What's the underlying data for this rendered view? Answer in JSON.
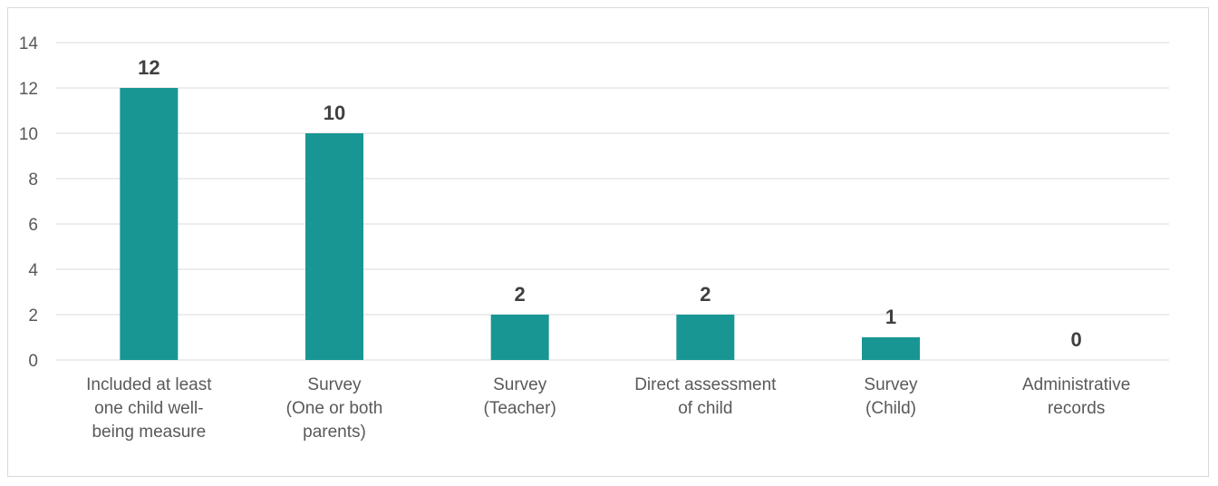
{
  "chart_data": {
    "type": "bar",
    "title": "",
    "xlabel": "",
    "ylabel": "",
    "categories": [
      [
        "Included at least",
        "one child well-",
        "being measure"
      ],
      [
        "Survey",
        "(One or both",
        "parents)"
      ],
      [
        "Survey",
        "(Teacher)"
      ],
      [
        "Direct assessment",
        "of child"
      ],
      [
        "Survey",
        "(Child)"
      ],
      [
        "Administrative",
        "records"
      ]
    ],
    "values": [
      12,
      10,
      2,
      2,
      1,
      0
    ],
    "ylim": [
      0,
      14
    ],
    "yticks": [
      0,
      2,
      4,
      6,
      8,
      10,
      12,
      14
    ],
    "grid": true,
    "legend": "none",
    "bar_color": "#189694",
    "grid_color": "#d9d9d9"
  }
}
